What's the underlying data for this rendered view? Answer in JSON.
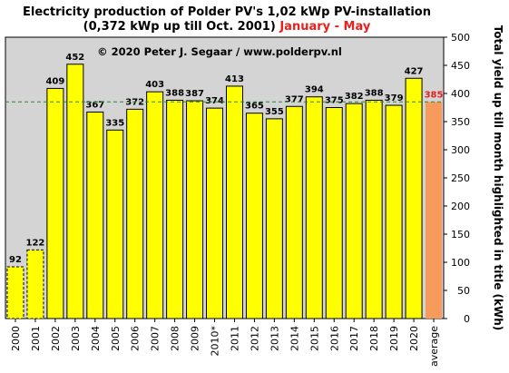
{
  "chart_data": {
    "type": "bar",
    "title_line1": "Electricity production  of Polder  PV's  1,02 kWp PV-installation",
    "title_line2_main": "(0,372 kWp up till Oct. 2001) ",
    "title_line2_highlight": "January - May",
    "copyright": "© 2020 Peter J. Segaar / www.polderpv.nl",
    "ylabel": "Total yield up till month highlighted in title (kWh)",
    "ylim": [
      0,
      500
    ],
    "yticks": [
      0,
      50,
      100,
      150,
      200,
      250,
      300,
      350,
      400,
      450,
      500
    ],
    "yticks_labels": [
      "0",
      "50",
      "100",
      "150",
      "200",
      "250",
      "300",
      "350",
      "400",
      "450",
      "500"
    ],
    "categories": [
      "2000",
      "2001",
      "2002",
      "2003",
      "2004",
      "2005",
      "2006",
      "2007",
      "2008",
      "2009",
      "2010*",
      "2011",
      "2012",
      "2013",
      "2014",
      "2015",
      "2016",
      "2017",
      "2018",
      "2019",
      "2020",
      "average"
    ],
    "values": [
      92,
      122,
      409,
      452,
      367,
      335,
      372,
      403,
      388,
      387,
      374,
      413,
      365,
      355,
      377,
      394,
      375,
      382,
      388,
      379,
      427,
      385
    ],
    "value_labels": [
      "92",
      "122",
      "409",
      "452",
      "367",
      "335",
      "372",
      "403",
      "388",
      "387",
      "374",
      "413",
      "365",
      "355",
      "377",
      "394",
      "375",
      "382",
      "388",
      "379",
      "427",
      "385"
    ],
    "dashed_outline_categories": [
      "2000",
      "2001"
    ],
    "highlight_category": "average",
    "reference_line_value": 385,
    "grid": false,
    "legend": "none",
    "colors": {
      "bar": "#ffff00",
      "average_bar": "#f79a5b",
      "plot_background": "#d4d4d4",
      "reference_line": "#2a8a2a",
      "highlight_text": "#e8211e"
    }
  }
}
